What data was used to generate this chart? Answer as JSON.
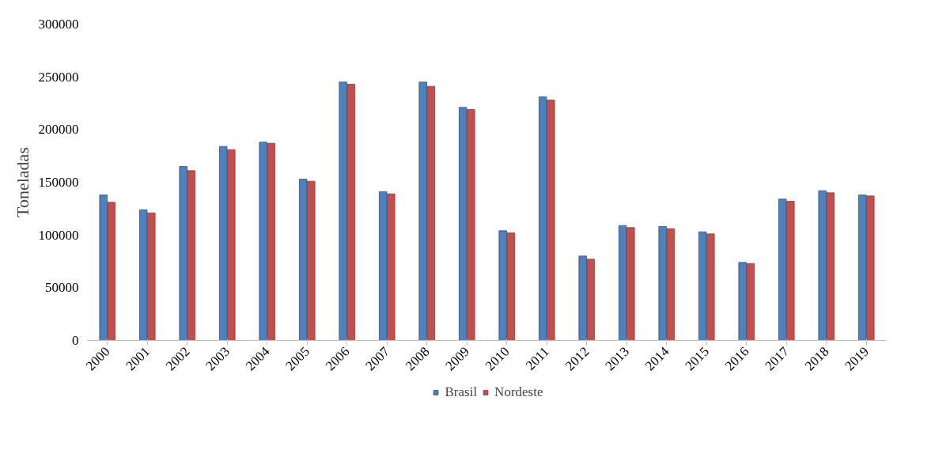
{
  "chart_data": {
    "type": "bar",
    "ylabel": "Toneladas",
    "categories": [
      "2000",
      "2001",
      "2002",
      "2003",
      "2004",
      "2005",
      "2006",
      "2007",
      "2008",
      "2009",
      "2010",
      "2011",
      "2012",
      "2013",
      "2014",
      "2015",
      "2016",
      "2017",
      "2018",
      "2019"
    ],
    "series": [
      {
        "name": "Brasil",
        "color": "#4f81bd",
        "values": [
          138000,
          124000,
          165000,
          184000,
          188000,
          153000,
          245000,
          141000,
          245000,
          221000,
          104000,
          231000,
          80000,
          109000,
          108000,
          103000,
          74000,
          134000,
          142000,
          138000
        ]
      },
      {
        "name": "Nordeste",
        "color": "#c0504d",
        "values": [
          131000,
          121000,
          161000,
          181000,
          187000,
          151000,
          243000,
          139000,
          241000,
          219000,
          102000,
          228000,
          77000,
          107000,
          106000,
          101000,
          73000,
          132000,
          140000,
          137000
        ]
      }
    ],
    "ylim": [
      0,
      300000
    ],
    "yticks": [
      0,
      50000,
      100000,
      150000,
      200000,
      250000,
      300000
    ],
    "grid": false,
    "legend": "bottom"
  }
}
